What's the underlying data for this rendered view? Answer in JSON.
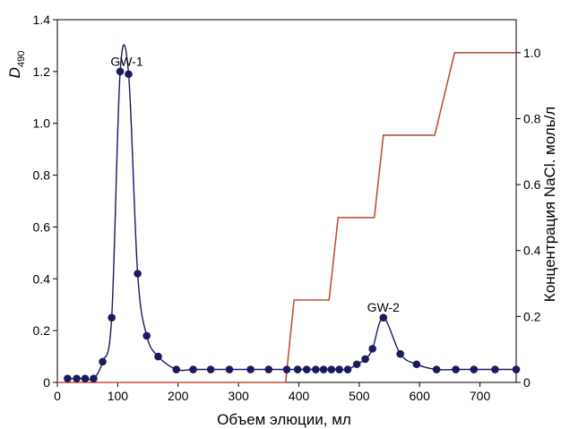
{
  "chart_data": {
    "type": "line",
    "xlabel": "Объем элюции, мл",
    "ylabel_main": "D",
    "ylabel_sub": "490",
    "y2label": "Концентрация NaCl. моль/л",
    "xlim": [
      0,
      760
    ],
    "ylim": [
      0,
      1.4
    ],
    "y2lim": [
      0,
      1.1
    ],
    "x_ticks": [
      "0",
      "100",
      "200",
      "300",
      "400",
      "500",
      "600",
      "700"
    ],
    "y_ticks": [
      "0",
      "0.2",
      "0.4",
      "0.6",
      "0.8",
      "1.0",
      "1.2",
      "1.4"
    ],
    "y2_ticks": [
      "0",
      "0.2",
      "0.4",
      "0.6",
      "0.8",
      "1.0"
    ],
    "grid": false,
    "series": [
      {
        "axis": "left",
        "color": "#1a1a5e",
        "points": [
          [
            17,
            0.015
          ],
          [
            32,
            0.015
          ],
          [
            46,
            0.015
          ],
          [
            60,
            0.015
          ],
          [
            75,
            0.08
          ],
          [
            90,
            0.25
          ],
          [
            104,
            1.2
          ],
          [
            118,
            1.19
          ],
          [
            133,
            0.42
          ],
          [
            148,
            0.18
          ],
          [
            167,
            0.1
          ],
          [
            197,
            0.05
          ],
          [
            225,
            0.05
          ],
          [
            254,
            0.05
          ],
          [
            285,
            0.05
          ],
          [
            320,
            0.05
          ],
          [
            350,
            0.05
          ],
          [
            380,
            0.05
          ],
          [
            398,
            0.05
          ],
          [
            413,
            0.05
          ],
          [
            428,
            0.05
          ],
          [
            441,
            0.05
          ],
          [
            454,
            0.05
          ],
          [
            467,
            0.05
          ],
          [
            481,
            0.05
          ],
          [
            496,
            0.07
          ],
          [
            510,
            0.09
          ],
          [
            522,
            0.13
          ],
          [
            540,
            0.25
          ],
          [
            568,
            0.11
          ],
          [
            595,
            0.07
          ],
          [
            628,
            0.05
          ],
          [
            660,
            0.05
          ],
          [
            690,
            0.05
          ],
          [
            725,
            0.05
          ],
          [
            760,
            0.05
          ]
        ]
      },
      {
        "axis": "right",
        "color": "#c0503a",
        "points": [
          [
            0,
            0
          ],
          [
            378,
            0
          ],
          [
            392,
            0.25
          ],
          [
            450,
            0.25
          ],
          [
            465,
            0.5
          ],
          [
            525,
            0.5
          ],
          [
            540,
            0.75
          ],
          [
            625,
            0.75
          ],
          [
            658,
            1.0
          ],
          [
            760,
            1.0
          ]
        ]
      }
    ],
    "annotations": [
      {
        "text": "GW-1",
        "x": 115,
        "y": 1.24
      },
      {
        "text": "GW-2",
        "x": 540,
        "y": 0.29
      }
    ]
  }
}
